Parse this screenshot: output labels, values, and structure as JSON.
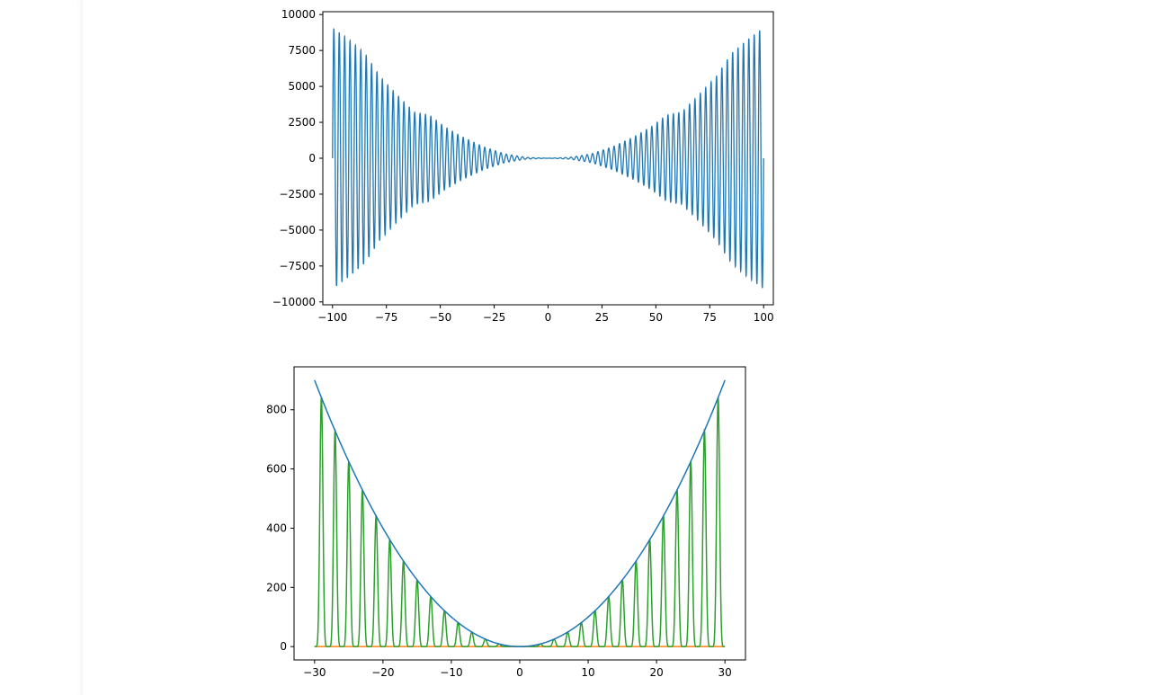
{
  "chart_data": [
    {
      "type": "line",
      "title": "",
      "xlabel": "",
      "ylabel": "",
      "xlim": [
        -104.5,
        104.5
      ],
      "ylim": [
        -10200,
        10200
      ],
      "xticks": [
        -100,
        -75,
        -50,
        -25,
        0,
        25,
        50,
        75,
        100
      ],
      "xtick_labels": [
        "−100",
        "−75",
        "−50",
        "−25",
        "0",
        "25",
        "50",
        "75",
        "100"
      ],
      "yticks": [
        10000,
        7500,
        5000,
        2500,
        0,
        -2500,
        -5000,
        -7500,
        -10000
      ],
      "ytick_labels": [
        "10000",
        "7500",
        "5000",
        "2500",
        "0",
        "−2500",
        "−5000",
        "−7500",
        "−10000"
      ],
      "grid": false,
      "series": [
        {
          "color": "#1f77b4",
          "x_range": [
            -100,
            100
          ],
          "oscillation_cycles": 80,
          "envelope": {
            "x": [
              -100,
              -92,
              -85,
              -78,
              -70,
              -62,
              -55,
              -48,
              -40,
              -30,
              -20,
              -10,
              0,
              10,
              20,
              30,
              40,
              48,
              55,
              62,
              70,
              78,
              85,
              92,
              100
            ],
            "y": [
              9100,
              8200,
              7300,
              5700,
              4400,
              3200,
              3000,
              2200,
              1500,
              800,
              300,
              60,
              0,
              60,
              300,
              800,
              1500,
              2200,
              3000,
              3200,
              4400,
              5700,
              7300,
              8200,
              9100
            ]
          }
        }
      ]
    },
    {
      "type": "line",
      "title": "",
      "xlabel": "",
      "ylabel": "",
      "xlim": [
        -33,
        33
      ],
      "ylim": [
        -45,
        945
      ],
      "xticks": [
        -30,
        -20,
        -10,
        0,
        10,
        20,
        30
      ],
      "xtick_labels": [
        "−30",
        "−20",
        "−10",
        "0",
        "10",
        "20",
        "30"
      ],
      "yticks": [
        0,
        200,
        400,
        600,
        800
      ],
      "ytick_labels": [
        "0",
        "200",
        "400",
        "600",
        "800"
      ],
      "grid": false,
      "series": [
        {
          "color": "#1f77b4",
          "function": "y = x^2",
          "x": [
            -30,
            -25,
            -20,
            -15,
            -10,
            -5,
            0,
            5,
            10,
            15,
            20,
            25,
            30
          ],
          "y": [
            900,
            625,
            400,
            225,
            100,
            25,
            0,
            25,
            100,
            225,
            400,
            625,
            900
          ]
        },
        {
          "color": "#ff7f0e",
          "function": "y = 0",
          "x": [
            -30,
            30
          ],
          "y": [
            0,
            0
          ]
        },
        {
          "color": "#2ca02c",
          "function": "y = x^2 * sin^2(pi*x/2)^4",
          "peak_x": [
            -29,
            -27,
            -25,
            -23,
            -21,
            -19,
            -17,
            -15,
            -13,
            -11,
            -9,
            -7,
            -5,
            -3,
            -1,
            1,
            3,
            5,
            7,
            9,
            11,
            13,
            15,
            17,
            19,
            21,
            23,
            25,
            27,
            29
          ],
          "peak_y": [
            841,
            729,
            625,
            529,
            441,
            361,
            289,
            225,
            169,
            121,
            81,
            49,
            25,
            9,
            1,
            1,
            9,
            25,
            49,
            81,
            121,
            169,
            225,
            289,
            361,
            441,
            529,
            625,
            729,
            841
          ]
        }
      ]
    }
  ]
}
